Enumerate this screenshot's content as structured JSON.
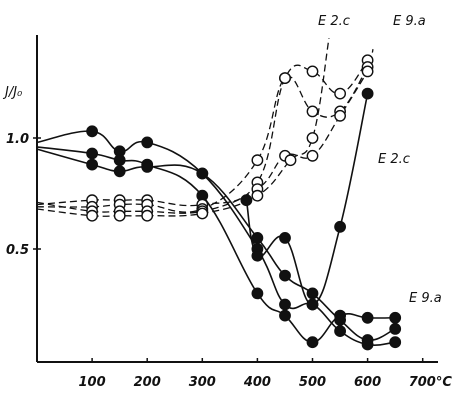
{
  "chart_data": {
    "type": "line",
    "title": "",
    "xlabel": "°C",
    "ylabel": "J/J₀",
    "xlim": [
      0,
      760
    ],
    "ylim": [
      0.0,
      1.4
    ],
    "x_ticks": [
      100,
      200,
      300,
      400,
      500,
      600,
      700
    ],
    "x_tick_labels": [
      "100",
      "200",
      "300",
      "400",
      "500",
      "600",
      "700°C"
    ],
    "y_ticks": [
      0.5,
      1.0
    ],
    "y_tick_labels": [
      "0.5",
      "1.0"
    ],
    "grid": false,
    "legend": "none",
    "annotations": [
      "E 2.c",
      "E 9.a",
      "E 2.c",
      "E 9.a"
    ],
    "series": [
      {
        "style": "solid",
        "marker": "filled",
        "points": [
          [
            0,
            0.98
          ],
          [
            100,
            1.03
          ],
          [
            150,
            0.94
          ],
          [
            200,
            0.98
          ],
          [
            300,
            0.84
          ],
          [
            400,
            0.5
          ],
          [
            450,
            0.25
          ],
          [
            500,
            0.25
          ],
          [
            550,
            0.13
          ],
          [
            600,
            0.07
          ],
          [
            650,
            0.08
          ]
        ]
      },
      {
        "style": "solid",
        "marker": "filled",
        "points": [
          [
            0,
            0.96
          ],
          [
            100,
            0.93
          ],
          [
            150,
            0.9
          ],
          [
            200,
            0.88
          ],
          [
            300,
            0.74
          ],
          [
            400,
            0.3
          ],
          [
            450,
            0.2
          ],
          [
            500,
            0.08
          ],
          [
            550,
            0.2
          ],
          [
            600,
            0.19
          ],
          [
            650,
            0.19
          ]
        ]
      },
      {
        "style": "solid",
        "marker": "filled",
        "points": [
          [
            0,
            0.95
          ],
          [
            100,
            0.88
          ],
          [
            150,
            0.85
          ],
          [
            200,
            0.87
          ],
          [
            300,
            0.84
          ],
          [
            400,
            0.55
          ],
          [
            450,
            0.38
          ],
          [
            500,
            0.3
          ],
          [
            550,
            0.18
          ],
          [
            600,
            0.09
          ],
          [
            650,
            0.14
          ]
        ]
      },
      {
        "style": "solid",
        "marker": "filled",
        "points": [
          [
            380,
            0.72
          ],
          [
            400,
            0.47
          ],
          [
            450,
            0.55
          ],
          [
            500,
            0.25
          ],
          [
            550,
            0.6
          ],
          [
            600,
            1.2
          ]
        ]
      },
      {
        "style": "dashed",
        "marker": "open",
        "points": [
          [
            0,
            0.7
          ],
          [
            100,
            0.72
          ],
          [
            150,
            0.72
          ],
          [
            200,
            0.72
          ],
          [
            300,
            0.7
          ],
          [
            400,
            0.8
          ],
          [
            450,
            1.27
          ],
          [
            500,
            1.3
          ],
          [
            550,
            1.2
          ],
          [
            600,
            1.35
          ],
          [
            610,
            1.4
          ]
        ]
      },
      {
        "style": "dashed",
        "marker": "open",
        "points": [
          [
            0,
            0.69
          ],
          [
            100,
            0.69
          ],
          [
            150,
            0.7
          ],
          [
            200,
            0.7
          ],
          [
            300,
            0.68
          ],
          [
            400,
            0.9
          ],
          [
            450,
            1.27
          ],
          [
            500,
            1.12
          ],
          [
            550,
            1.12
          ],
          [
            600,
            1.32
          ]
        ]
      },
      {
        "style": "dashed",
        "marker": "open",
        "points": [
          [
            0,
            0.71
          ],
          [
            100,
            0.67
          ],
          [
            150,
            0.67
          ],
          [
            200,
            0.67
          ],
          [
            300,
            0.67
          ],
          [
            400,
            0.77
          ],
          [
            450,
            0.92
          ],
          [
            500,
            0.92
          ],
          [
            550,
            1.1
          ],
          [
            600,
            1.3
          ]
        ]
      },
      {
        "style": "dashed",
        "marker": "open",
        "points": [
          [
            0,
            0.68
          ],
          [
            100,
            0.65
          ],
          [
            150,
            0.65
          ],
          [
            200,
            0.65
          ],
          [
            300,
            0.66
          ],
          [
            400,
            0.74
          ],
          [
            460,
            0.9
          ],
          [
            500,
            1.0
          ],
          [
            530,
            1.45
          ]
        ]
      }
    ]
  }
}
